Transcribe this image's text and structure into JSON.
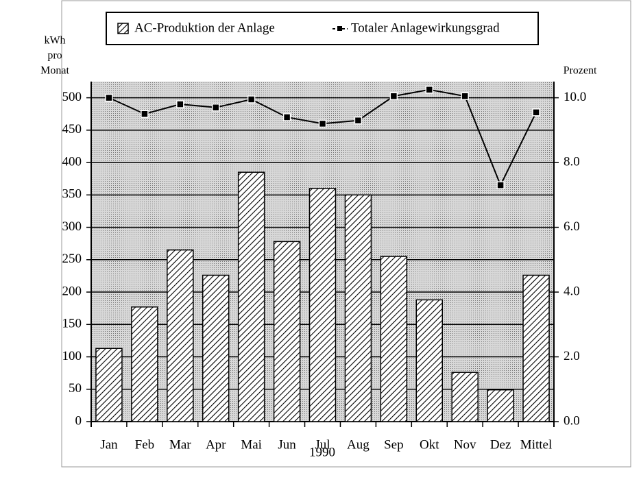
{
  "chart_data": {
    "type": "bar",
    "categories": [
      "Jan",
      "Feb",
      "Mar",
      "Apr",
      "Mai",
      "Jun",
      "Jul",
      "Aug",
      "Sep",
      "Okt",
      "Nov",
      "Dez",
      "Mittel"
    ],
    "series": [
      {
        "name": "AC-Produktion der Anlage",
        "type": "bar",
        "color": "#000000",
        "values": [
          113,
          177,
          265,
          226,
          385,
          278,
          360,
          350,
          255,
          188,
          76,
          49,
          226
        ]
      },
      {
        "name": "Totaler Anlagewirkungsgrad",
        "type": "line",
        "axis": "y2",
        "color": "#000000",
        "values": [
          10.0,
          9.5,
          9.8,
          9.7,
          9.95,
          9.4,
          9.2,
          9.3,
          10.05,
          10.25,
          10.05,
          7.3,
          9.55
        ]
      }
    ],
    "y_label": [
      "kWh",
      "pro",
      "Monat"
    ],
    "y2_label": "Prozent",
    "x_label": "1990",
    "ylim": [
      0,
      525
    ],
    "yticks": [
      0,
      50,
      100,
      150,
      200,
      250,
      300,
      350,
      400,
      450,
      500
    ],
    "y2lim": [
      0,
      10.5
    ],
    "y2ticks": [
      {
        "value": 0,
        "label": "0.0"
      },
      {
        "value": 2,
        "label": "2.0"
      },
      {
        "value": 4,
        "label": "4.0"
      },
      {
        "value": 6,
        "label": "6.0"
      },
      {
        "value": 8,
        "label": "8.0"
      },
      {
        "value": 10,
        "label": "10.0"
      }
    ],
    "grid": true,
    "legend": "top"
  }
}
